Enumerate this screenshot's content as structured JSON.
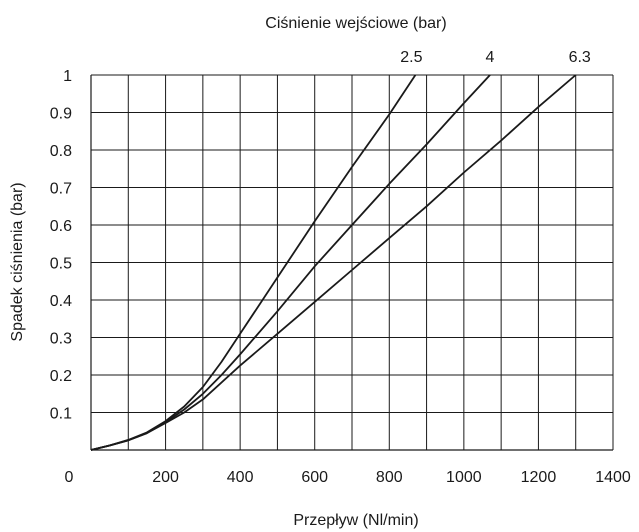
{
  "chart_data": {
    "type": "line",
    "top_title": "Ciśnienie wejściowe (bar)",
    "xlabel": "Przepływ (Nl/min)",
    "ylabel": "Spadek ciśnienia (bar)",
    "xlim": [
      0,
      1400
    ],
    "ylim": [
      0,
      1
    ],
    "x_ticks": [
      0,
      200,
      400,
      600,
      800,
      1000,
      1200,
      1400
    ],
    "x_tick_labels": [
      "0",
      "200",
      "400",
      "600",
      "800",
      "1000",
      "1200",
      "1400"
    ],
    "y_ticks": [
      0.1,
      0.2,
      0.3,
      0.4,
      0.5,
      0.6,
      0.7,
      0.8,
      0.9,
      1
    ],
    "y_tick_labels": [
      "0.1",
      "0.2",
      "0.3",
      "0.4",
      "0.5",
      "0.6",
      "0.7",
      "0.8",
      "0.9",
      "1"
    ],
    "grid": true,
    "x_gridlines": [
      100,
      200,
      300,
      400,
      500,
      600,
      700,
      800,
      900,
      1000,
      1100,
      1200,
      1300,
      1400
    ],
    "y_gridlines": [
      0.1,
      0.2,
      0.3,
      0.4,
      0.5,
      0.6,
      0.7,
      0.8,
      0.9,
      1
    ],
    "line_color": "#1a1a1a",
    "series": [
      {
        "name": "2.5",
        "x": [
          0,
          50,
          100,
          150,
          200,
          250,
          300,
          350,
          400,
          500,
          600,
          700,
          800,
          870
        ],
        "y": [
          0,
          0.012,
          0.027,
          0.047,
          0.077,
          0.116,
          0.168,
          0.235,
          0.31,
          0.46,
          0.61,
          0.755,
          0.895,
          1.0
        ]
      },
      {
        "name": "4",
        "x": [
          0,
          50,
          100,
          150,
          200,
          250,
          300,
          350,
          400,
          500,
          600,
          700,
          800,
          900,
          1000,
          1070
        ],
        "y": [
          0,
          0.012,
          0.026,
          0.045,
          0.074,
          0.108,
          0.15,
          0.2,
          0.255,
          0.37,
          0.49,
          0.6,
          0.71,
          0.815,
          0.925,
          1.0
        ]
      },
      {
        "name": "6.3",
        "x": [
          0,
          50,
          100,
          150,
          200,
          250,
          300,
          400,
          500,
          600,
          700,
          800,
          900,
          1000,
          1100,
          1200,
          1300
        ],
        "y": [
          0,
          0.012,
          0.026,
          0.045,
          0.072,
          0.1,
          0.135,
          0.225,
          0.31,
          0.395,
          0.48,
          0.565,
          0.65,
          0.74,
          0.825,
          0.915,
          1.0
        ]
      }
    ]
  }
}
